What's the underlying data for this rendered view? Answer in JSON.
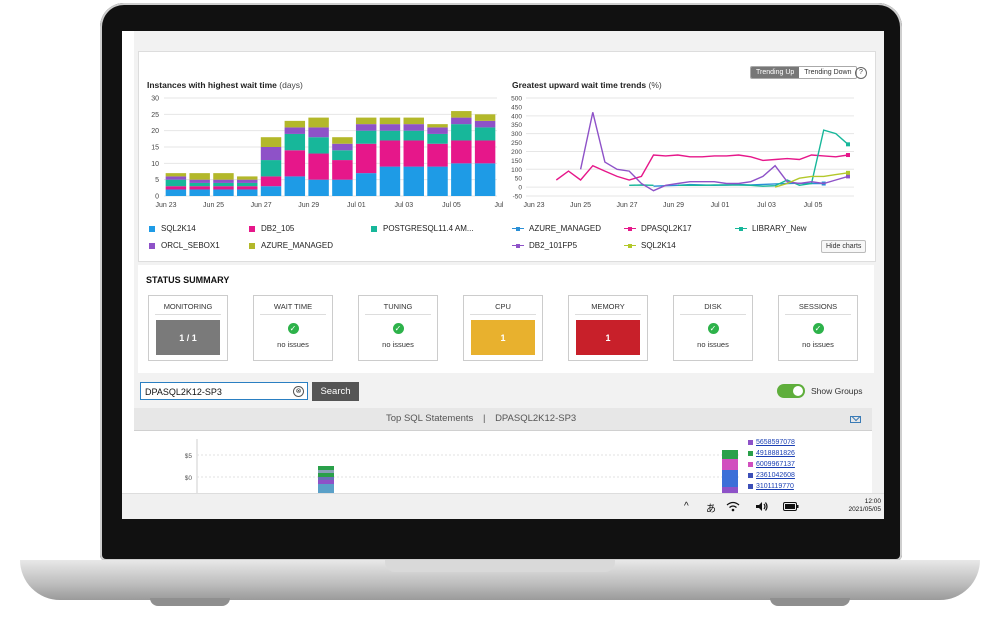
{
  "charts": {
    "left_title": "Instances with highest wait time",
    "left_unit": "(days)",
    "right_title": "Greatest upward wait time trends",
    "right_unit": "(%)",
    "toggle_up": "Trending Up",
    "toggle_down": "Trending Down",
    "help": "?",
    "hide_charts": "Hide charts",
    "left_legend": [
      {
        "name": "SQL2K14",
        "color": "#1e9be6"
      },
      {
        "name": "DB2_105",
        "color": "#e6178a"
      },
      {
        "name": "POSTGRESQL11.4 AM...",
        "color": "#17b79a"
      },
      {
        "name": "ORCL_SEBOX1",
        "color": "#8e52c8"
      },
      {
        "name": "AZURE_MANAGED",
        "color": "#b3b82a"
      }
    ],
    "right_legend": [
      {
        "name": "AZURE_MANAGED",
        "color": "#2a8fd6"
      },
      {
        "name": "DPASQL2K17",
        "color": "#e6178a"
      },
      {
        "name": "LIBRARY_New",
        "color": "#17b79a"
      },
      {
        "name": "DB2_101FP5",
        "color": "#8e52c8"
      },
      {
        "name": "SQL2K14",
        "color": "#b3c82a"
      }
    ]
  },
  "chart_data": [
    {
      "type": "bar",
      "stacked": true,
      "title": "Instances with highest wait time",
      "ylabel": "(days)",
      "ylim": [
        0,
        30
      ],
      "yticks": [
        "0",
        "5",
        "10",
        "15",
        "20",
        "25",
        "30"
      ],
      "x_tick_labels": [
        "Jun 23",
        "Jun 25",
        "Jun 27",
        "Jun 29",
        "Jul 01",
        "Jul 03",
        "Jul 05",
        "Jul"
      ],
      "categories": [
        "Jun 23",
        "Jun 24",
        "Jun 25",
        "Jun 26",
        "Jun 27",
        "Jun 28",
        "Jun 29",
        "Jun 30",
        "Jul 01",
        "Jul 02",
        "Jul 03",
        "Jul 04",
        "Jul 05",
        "Jul 06"
      ],
      "series": [
        {
          "name": "SQL2K14",
          "values": [
            2,
            2,
            2,
            2,
            3,
            6,
            5,
            5,
            7,
            9,
            9,
            9,
            10,
            10
          ]
        },
        {
          "name": "DB2_105",
          "values": [
            1,
            1,
            1,
            1,
            3,
            8,
            8,
            6,
            9,
            8,
            8,
            7,
            7,
            7
          ]
        },
        {
          "name": "POSTGRESQL11.4 AM...",
          "values": [
            2,
            1,
            1,
            1,
            5,
            5,
            5,
            3,
            4,
            3,
            3,
            3,
            5,
            4
          ]
        },
        {
          "name": "ORCL_SEBOX1",
          "values": [
            1,
            1,
            1,
            1,
            4,
            2,
            3,
            2,
            2,
            2,
            2,
            2,
            2,
            2
          ]
        },
        {
          "name": "AZURE_MANAGED",
          "values": [
            1,
            2,
            2,
            1,
            3,
            2,
            3,
            2,
            2,
            2,
            2,
            1,
            2,
            2
          ]
        }
      ]
    },
    {
      "type": "line",
      "title": "Greatest upward wait time trends",
      "ylabel": "(%)",
      "ylim": [
        -50,
        500
      ],
      "yticks": [
        "-50",
        "0",
        "50",
        "100",
        "150",
        "200",
        "250",
        "300",
        "350",
        "400",
        "450",
        "500"
      ],
      "x_tick_labels": [
        "Jun 23",
        "Jun 25",
        "Jun 27",
        "Jun 29",
        "Jul 01",
        "Jul 03",
        "Jul 05"
      ],
      "x": [
        0,
        1,
        2,
        3,
        4,
        5,
        6,
        7,
        8,
        9,
        10,
        11,
        12,
        13,
        14,
        15,
        16,
        17,
        18,
        19,
        20,
        21,
        22,
        23,
        24,
        25,
        26
      ],
      "series": [
        {
          "name": "AZURE_MANAGED",
          "values": [
            null,
            null,
            null,
            null,
            null,
            null,
            null,
            null,
            null,
            null,
            5,
            8,
            10,
            14,
            12,
            10,
            12,
            14,
            12,
            15,
            18,
            20,
            22,
            20,
            20,
            null,
            null
          ]
        },
        {
          "name": "DPASQL2K17",
          "values": [
            null,
            null,
            40,
            90,
            40,
            120,
            90,
            60,
            40,
            60,
            180,
            175,
            180,
            170,
            170,
            175,
            175,
            180,
            170,
            150,
            155,
            160,
            155,
            180,
            175,
            170,
            180
          ]
        },
        {
          "name": "LIBRARY_New",
          "values": [
            null,
            null,
            null,
            null,
            null,
            null,
            null,
            null,
            10,
            12,
            10,
            null,
            10,
            10,
            10,
            12,
            12,
            12,
            10,
            5,
            8,
            40,
            10,
            20,
            320,
            300,
            240
          ]
        },
        {
          "name": "DB2_101FP5",
          "values": [
            null,
            null,
            null,
            null,
            100,
            420,
            140,
            100,
            90,
            20,
            -20,
            10,
            20,
            30,
            30,
            30,
            20,
            20,
            30,
            60,
            120,
            30,
            20,
            30,
            20,
            40,
            60
          ]
        },
        {
          "name": "SQL2K14",
          "values": [
            null,
            null,
            null,
            null,
            null,
            null,
            null,
            null,
            null,
            null,
            null,
            null,
            null,
            null,
            null,
            null,
            null,
            null,
            null,
            null,
            0,
            20,
            50,
            60,
            60,
            70,
            80
          ]
        }
      ]
    },
    {
      "type": "bar",
      "stacked": true,
      "title": "Top SQL Statements | DPASQL2K12-SP3",
      "yticks": [
        "$5",
        "$0"
      ],
      "legend": [
        "5658597078",
        "4918881826",
        "6009967137",
        "2361042608",
        "3101119770"
      ]
    }
  ],
  "status": {
    "title": "STATUS SUMMARY",
    "cards": [
      {
        "label": "MONITORING",
        "value": "1 / 1",
        "color": "#7a7a7a"
      },
      {
        "label": "WAIT TIME",
        "note": "no issues"
      },
      {
        "label": "TUNING",
        "note": "no issues"
      },
      {
        "label": "CPU",
        "value": "1",
        "color": "#e8b12e"
      },
      {
        "label": "MEMORY",
        "value": "1",
        "color": "#c8202a"
      },
      {
        "label": "DISK",
        "note": "no issues"
      },
      {
        "label": "SESSIONS",
        "note": "no issues"
      }
    ]
  },
  "search": {
    "value": "DPASQL2K12-SP3",
    "button": "Search",
    "clear": "⊗",
    "show_groups": "Show Groups"
  },
  "sql": {
    "title": "Top SQL Statements",
    "separator": "|",
    "instance": "DPASQL2K12-SP3",
    "y5": "$5",
    "y0": "$0",
    "ids": [
      {
        "id": "5658597078",
        "color": "#8e52c8"
      },
      {
        "id": "4918881826",
        "color": "#2aa04a"
      },
      {
        "id": "6009967137",
        "color": "#d14fbf"
      },
      {
        "id": "2361042608",
        "color": "#3c4fb8"
      },
      {
        "id": "3101119770",
        "color": "#3c4fb8"
      }
    ]
  },
  "taskbar": {
    "chevron": "^",
    "ime": "あ",
    "time": "12:00",
    "date": "2021/05/05"
  }
}
